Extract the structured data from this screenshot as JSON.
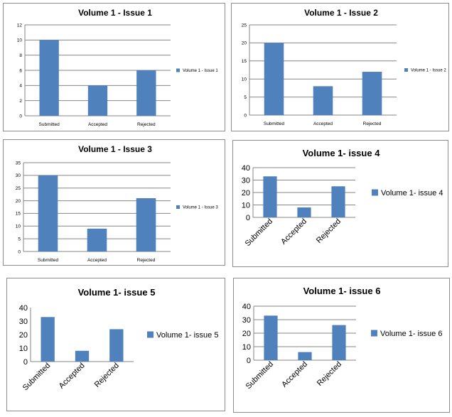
{
  "chart_data": [
    {
      "type": "bar",
      "title": "Volume 1 - Issue 1",
      "categories": [
        "Submitted",
        "Accepted",
        "Rejected"
      ],
      "series": [
        {
          "name": "Volume 1 - Issue 1",
          "values": [
            10,
            4,
            6
          ]
        }
      ],
      "ylim": [
        0,
        12
      ],
      "yticks": [
        0,
        2,
        4,
        6,
        8,
        10,
        12
      ],
      "grid": true,
      "legend": "right",
      "color": "#4f81bd"
    },
    {
      "type": "bar",
      "title": "Volume 1 - Issue 2",
      "categories": [
        "Submitted",
        "Accepted",
        "Rejected"
      ],
      "series": [
        {
          "name": "Volume 1 - Issue 2",
          "values": [
            20,
            8,
            12
          ]
        }
      ],
      "ylim": [
        0,
        25
      ],
      "yticks": [
        0,
        5,
        10,
        15,
        20,
        25
      ],
      "grid": true,
      "legend": "right",
      "color": "#4f81bd"
    },
    {
      "type": "bar",
      "title": "Volume 1 - Issue 3",
      "categories": [
        "Submitted",
        "Accepted",
        "Rejected"
      ],
      "series": [
        {
          "name": "Volume 1 - Issue 3",
          "values": [
            30,
            9,
            21
          ]
        }
      ],
      "ylim": [
        0,
        35
      ],
      "yticks": [
        0,
        5,
        10,
        15,
        20,
        25,
        30,
        35
      ],
      "grid": true,
      "legend": "right",
      "color": "#4f81bd"
    },
    {
      "type": "bar",
      "title": "Volume 1- issue 4",
      "categories": [
        "Submitted",
        "Accepted",
        "Rejected"
      ],
      "series": [
        {
          "name": "Volume 1- issue 4",
          "values": [
            33,
            8,
            25
          ]
        }
      ],
      "ylim": [
        0,
        40
      ],
      "yticks": [
        0,
        10,
        20,
        30,
        40
      ],
      "grid": true,
      "legend": "right",
      "color": "#4f81bd"
    },
    {
      "type": "bar",
      "title": "Volume 1- issue 5",
      "categories": [
        "Submitted",
        "Accepted",
        "Rejected"
      ],
      "series": [
        {
          "name": "Volume 1- issue 5",
          "values": [
            33,
            8,
            24
          ]
        }
      ],
      "ylim": [
        0,
        40
      ],
      "yticks": [
        0,
        10,
        20,
        30,
        40
      ],
      "grid": false,
      "legend": "right",
      "color": "#4f81bd"
    },
    {
      "type": "bar",
      "title": "Volume 1- issue 6",
      "categories": [
        "Submitted",
        "Accepted",
        "Rejected"
      ],
      "series": [
        {
          "name": "Volume 1- issue 6",
          "values": [
            33,
            6,
            26
          ]
        }
      ],
      "ylim": [
        0,
        40
      ],
      "yticks": [
        0,
        10,
        20,
        30,
        40
      ],
      "grid": true,
      "legend": "right",
      "color": "#4f81bd"
    }
  ]
}
